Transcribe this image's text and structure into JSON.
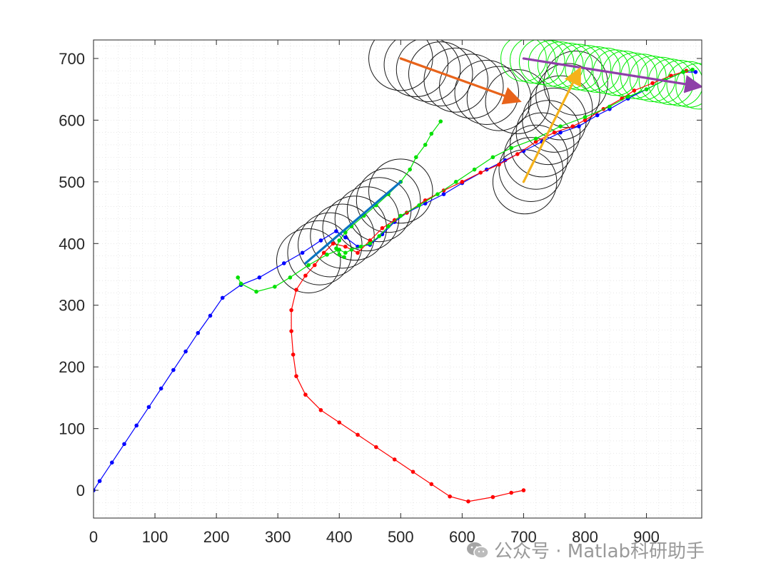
{
  "watermark": "公众号 · Matlab科研助手",
  "chart_data": {
    "type": "line",
    "title": "",
    "xlabel": "",
    "ylabel": "",
    "xlim": [
      0,
      990
    ],
    "ylim": [
      -45,
      730
    ],
    "xticks": [
      0,
      100,
      200,
      300,
      400,
      500,
      600,
      700,
      800,
      900
    ],
    "yticks": [
      0,
      100,
      200,
      300,
      400,
      500,
      600,
      700
    ],
    "grid": "minor dotted",
    "colors": {
      "blue": "#0000ff",
      "red": "#ff0000",
      "green": "#00e000",
      "circles_black": "#1a1a1a",
      "circles_green": "#00ee00",
      "arrow_orange": "#e8631a",
      "arrow_purple": "#8e3fa8",
      "line_yellow": "#f5b21a",
      "line_cyan": "#0a74c0"
    },
    "series": [
      {
        "color": "blue",
        "points": [
          [
            0,
            0
          ],
          [
            10,
            15
          ],
          [
            30,
            45
          ],
          [
            50,
            75
          ],
          [
            70,
            105
          ],
          [
            90,
            135
          ],
          [
            110,
            165
          ],
          [
            130,
            195
          ],
          [
            150,
            225
          ],
          [
            170,
            255
          ],
          [
            190,
            283
          ],
          [
            210,
            312
          ],
          [
            240,
            333
          ],
          [
            270,
            345
          ],
          [
            310,
            368
          ],
          [
            340,
            385
          ],
          [
            370,
            405
          ],
          [
            395,
            420
          ],
          [
            410,
            410
          ],
          [
            430,
            395
          ],
          [
            450,
            398
          ],
          [
            470,
            415
          ],
          [
            490,
            435
          ],
          [
            510,
            450
          ],
          [
            540,
            465
          ],
          [
            570,
            480
          ],
          [
            600,
            498
          ],
          [
            640,
            520
          ],
          [
            670,
            535
          ],
          [
            700,
            550
          ],
          [
            730,
            565
          ],
          [
            760,
            580
          ],
          [
            790,
            590
          ],
          [
            820,
            608
          ],
          [
            840,
            618
          ],
          [
            870,
            635
          ],
          [
            900,
            650
          ],
          [
            930,
            665
          ],
          [
            960,
            678
          ],
          [
            980,
            678
          ]
        ]
      },
      {
        "color": "red",
        "points": [
          [
            700,
            0
          ],
          [
            680,
            -4
          ],
          [
            650,
            -11
          ],
          [
            610,
            -18
          ],
          [
            580,
            -10
          ],
          [
            550,
            10
          ],
          [
            520,
            30
          ],
          [
            490,
            50
          ],
          [
            460,
            70
          ],
          [
            430,
            90
          ],
          [
            400,
            110
          ],
          [
            370,
            130
          ],
          [
            345,
            155
          ],
          [
            330,
            185
          ],
          [
            325,
            220
          ],
          [
            322,
            258
          ],
          [
            322,
            292
          ],
          [
            330,
            325
          ],
          [
            345,
            348
          ],
          [
            360,
            365
          ],
          [
            375,
            385
          ],
          [
            390,
            400
          ],
          [
            410,
            395
          ],
          [
            430,
            385
          ],
          [
            450,
            405
          ],
          [
            470,
            425
          ],
          [
            490,
            438
          ],
          [
            510,
            450
          ],
          [
            540,
            470
          ],
          [
            570,
            486
          ],
          [
            600,
            500
          ],
          [
            630,
            515
          ],
          [
            660,
            528
          ],
          [
            690,
            545
          ],
          [
            720,
            565
          ],
          [
            750,
            580
          ],
          [
            780,
            590
          ],
          [
            800,
            600
          ],
          [
            830,
            618
          ],
          [
            860,
            635
          ],
          [
            880,
            648
          ],
          [
            910,
            660
          ],
          [
            940,
            672
          ],
          [
            965,
            680
          ]
        ]
      },
      {
        "color": "green",
        "points": [
          [
            235,
            345
          ],
          [
            240,
            335
          ],
          [
            265,
            322
          ],
          [
            295,
            330
          ],
          [
            320,
            345
          ],
          [
            350,
            365
          ],
          [
            380,
            382
          ],
          [
            400,
            390
          ],
          [
            410,
            385
          ],
          [
            420,
            390
          ],
          [
            435,
            395
          ],
          [
            450,
            400
          ],
          [
            465,
            412
          ],
          [
            480,
            428
          ],
          [
            500,
            445
          ],
          [
            530,
            462
          ],
          [
            560,
            480
          ],
          [
            590,
            500
          ],
          [
            620,
            520
          ],
          [
            650,
            540
          ],
          [
            680,
            555
          ],
          [
            720,
            570
          ],
          [
            760,
            590
          ],
          [
            800,
            605
          ],
          [
            840,
            622
          ],
          [
            870,
            638
          ],
          [
            900,
            650
          ],
          [
            930,
            665
          ],
          [
            960,
            678
          ],
          [
            975,
            682
          ]
        ]
      },
      {
        "color": "green",
        "points": [
          [
            408,
            378
          ],
          [
            400,
            382
          ],
          [
            395,
            392
          ],
          [
            400,
            405
          ],
          [
            410,
            418
          ],
          [
            420,
            428
          ],
          [
            440,
            445
          ],
          [
            460,
            462
          ],
          [
            480,
            480
          ],
          [
            500,
            500
          ],
          [
            515,
            520
          ],
          [
            525,
            540
          ],
          [
            540,
            560
          ],
          [
            550,
            578
          ],
          [
            565,
            598
          ]
        ]
      }
    ],
    "circle_groups": [
      {
        "color": "circles_black",
        "radius": 52,
        "centers": [
          [
            500,
            700
          ],
          [
            525,
            690
          ],
          [
            545,
            682
          ],
          [
            565,
            675
          ],
          [
            590,
            665
          ],
          [
            615,
            655
          ],
          [
            640,
            645
          ],
          [
            660,
            635
          ],
          [
            690,
            630
          ]
        ]
      },
      {
        "color": "circles_black",
        "radius": 52,
        "centers": [
          [
            350,
            372
          ],
          [
            368,
            385
          ],
          [
            385,
            398
          ],
          [
            405,
            412
          ],
          [
            425,
            425
          ],
          [
            445,
            440
          ],
          [
            465,
            455
          ],
          [
            480,
            470
          ],
          [
            500,
            485
          ]
        ]
      },
      {
        "color": "circles_black",
        "radius": 52,
        "centers": [
          [
            702,
            500
          ],
          [
            712,
            520
          ],
          [
            720,
            540
          ],
          [
            730,
            560
          ],
          [
            740,
            580
          ],
          [
            750,
            600
          ],
          [
            760,
            620
          ],
          [
            772,
            640
          ],
          [
            785,
            660
          ]
        ]
      },
      {
        "color": "circles_green",
        "radius": 37,
        "centers": [
          [
            700,
            700
          ],
          [
            715,
            697
          ],
          [
            730,
            695
          ],
          [
            745,
            692
          ],
          [
            760,
            690
          ],
          [
            775,
            688
          ],
          [
            790,
            686
          ],
          [
            805,
            684
          ],
          [
            820,
            682
          ],
          [
            835,
            680
          ],
          [
            850,
            677
          ],
          [
            865,
            675
          ],
          [
            880,
            672
          ],
          [
            895,
            670
          ],
          [
            910,
            667
          ],
          [
            925,
            665
          ],
          [
            940,
            662
          ],
          [
            955,
            660
          ],
          [
            970,
            658
          ],
          [
            985,
            655
          ]
        ]
      }
    ],
    "arrows": [
      {
        "color": "arrow_orange",
        "from": [
          500,
          700
        ],
        "to": [
          690,
          632
        ],
        "head": true
      },
      {
        "color": "arrow_purple",
        "from": [
          700,
          700
        ],
        "to": [
          985,
          655
        ],
        "head": true
      },
      {
        "color": "line_yellow",
        "from": [
          700,
          500
        ],
        "to": [
          790,
          680
        ],
        "head": true
      },
      {
        "color": "line_cyan",
        "from": [
          345,
          368
        ],
        "to": [
          500,
          500
        ],
        "head": false
      }
    ]
  }
}
